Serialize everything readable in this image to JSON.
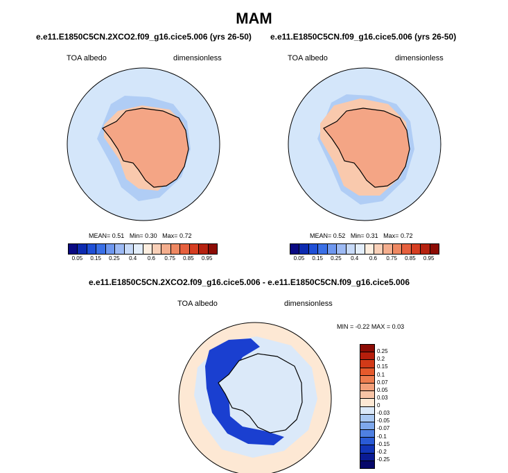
{
  "title": "MAM",
  "panels": {
    "left": {
      "case": "e.e11.E1850C5CN.2XCO2.f09_g16.cice5.006 (yrs 26-50)",
      "variable": "TOA albedo",
      "units": "dimensionless",
      "stats": {
        "mean_label": "MEAN=",
        "mean": "0.51",
        "min_label": "Min=",
        "min": "0.30",
        "max_label": "Max=",
        "max": "0.72"
      }
    },
    "right": {
      "case": "e.e11.E1850C5CN.f09_g16.cice5.006 (yrs 26-50)",
      "variable": "TOA albedo",
      "units": "dimensionless",
      "stats": {
        "mean_label": "MEAN=",
        "mean": "0.52",
        "min_label": "Min=",
        "min": "0.31",
        "max_label": "Max=",
        "max": "0.72"
      }
    },
    "diff": {
      "case": "e.e11.E1850C5CN.2XCO2.f09_g16.cice5.006 - e.e11.E1850C5CN.f09_g16.cice5.006",
      "variable": "TOA albedo",
      "units": "dimensionless",
      "stats": {
        "min_label": "MIN =",
        "min": "-0.22",
        "max_label": "MAX =",
        "max": "0.03"
      }
    }
  },
  "colorbar_abs": {
    "ticks": [
      "0.05",
      "0.15",
      "0.25",
      "0.4",
      "0.6",
      "0.75",
      "0.85",
      "0.95"
    ],
    "colors": [
      "#0a0a82",
      "#0d2bb0",
      "#1f4fd6",
      "#3a6fe6",
      "#6e97ef",
      "#9dbaf4",
      "#c7daf8",
      "#e3eefb",
      "#fdeee0",
      "#f9d0b8",
      "#f4ae8e",
      "#ee8862",
      "#e6603e",
      "#d63e22",
      "#b62210",
      "#8c0c05"
    ]
  },
  "colorbar_diff": {
    "ticks": [
      "0.25",
      "0.2",
      "0.15",
      "0.1",
      "0.07",
      "0.05",
      "0.03",
      "0",
      "-0.03",
      "-0.05",
      "-0.07",
      "-0.1",
      "-0.15",
      "-0.2",
      "-0.25"
    ],
    "colors": [
      "#8c0c05",
      "#b61e0c",
      "#d23a18",
      "#e55a2c",
      "#ee7d4f",
      "#f3a07a",
      "#f8c4a6",
      "#fde8d4",
      "#dbe9f9",
      "#a9c8f2",
      "#7ea8ec",
      "#4f80e2",
      "#2a5bd6",
      "#1235b8",
      "#0a1b94",
      "#06086a"
    ]
  },
  "colors": {
    "ocean": "#d4e6fa",
    "sea_ice_edge": "#b0cdf5",
    "continent_fill": "#f4a585",
    "continent_fill_light": "#f9c9ad",
    "diff_ocean": "#fde8d4",
    "diff_ice_loss": "#1a3fd0",
    "diff_continent": "#dbe9f9"
  }
}
